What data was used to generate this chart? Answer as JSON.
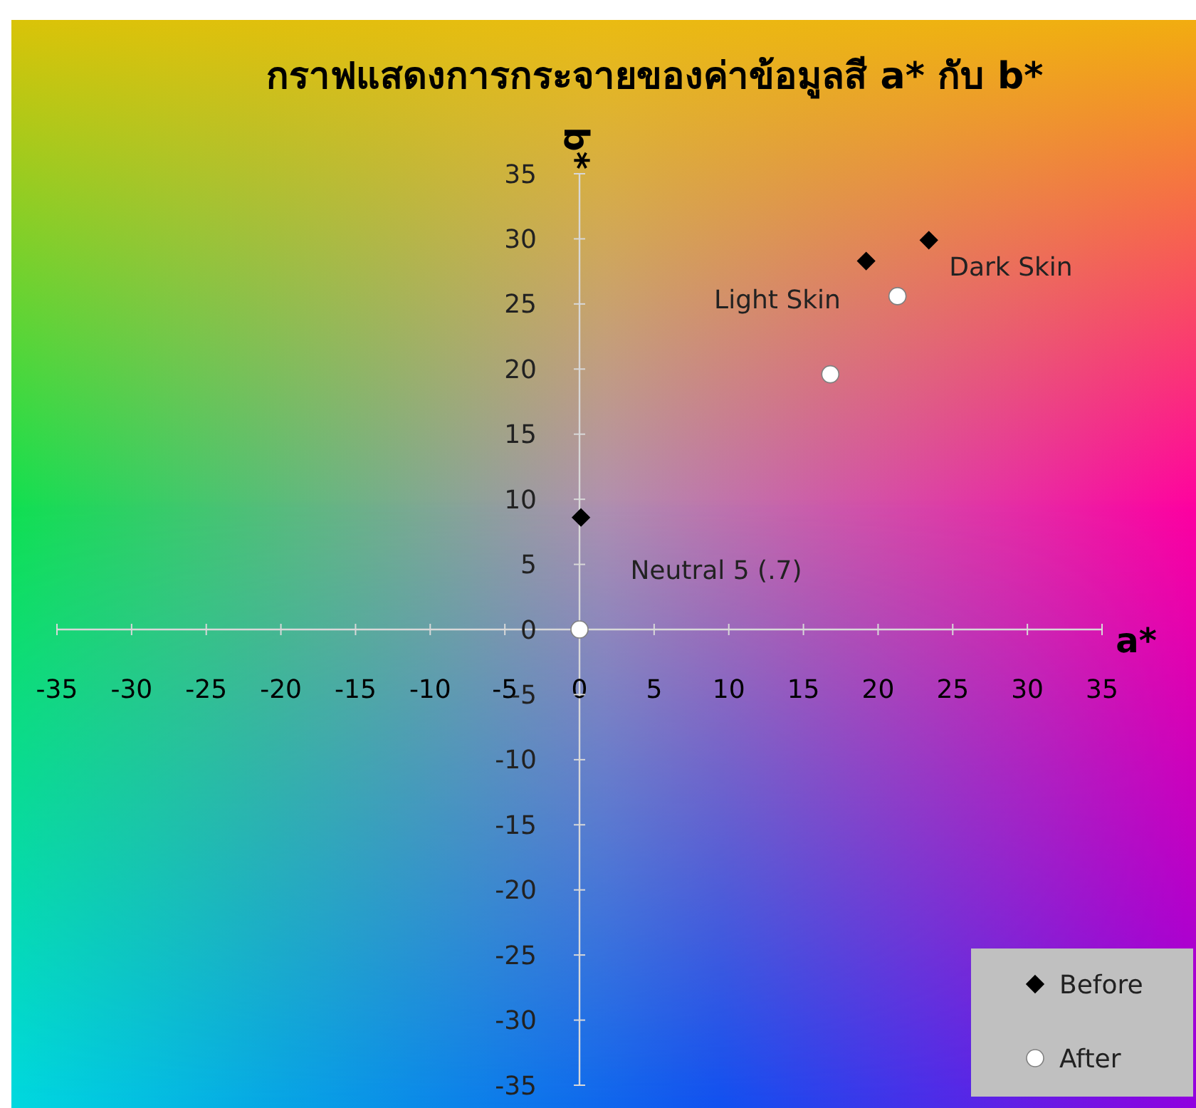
{
  "chart_data": {
    "type": "scatter",
    "title": "กราฟแสดงการกระจายของค่าข้อมูลสี a* กับ b*",
    "xlabel": "a*",
    "ylabel": "b*",
    "xlim": [
      -35,
      35
    ],
    "ylim": [
      -35,
      35
    ],
    "xticks": [
      -35,
      -30,
      -25,
      -20,
      -15,
      -10,
      -5,
      0,
      5,
      10,
      15,
      20,
      25,
      30,
      35
    ],
    "yticks": [
      -35,
      -30,
      -25,
      -20,
      -15,
      -10,
      -5,
      0,
      5,
      10,
      15,
      20,
      25,
      30,
      35
    ],
    "legend": "bottom right",
    "series": [
      {
        "name": "Before",
        "color": "#000000",
        "marker": "diamond",
        "x": [
          0.1,
          19.2,
          23.4
        ],
        "values": [
          8.6,
          28.3,
          29.9
        ]
      },
      {
        "name": "After",
        "color": "#ffffff",
        "marker": "circle",
        "x": [
          0,
          16.8,
          21.3
        ],
        "values": [
          0,
          19.6,
          25.6
        ]
      }
    ],
    "annotations": [
      "Light Skin",
      "Dark Skin",
      "Neutral 5 (.7)"
    ]
  }
}
